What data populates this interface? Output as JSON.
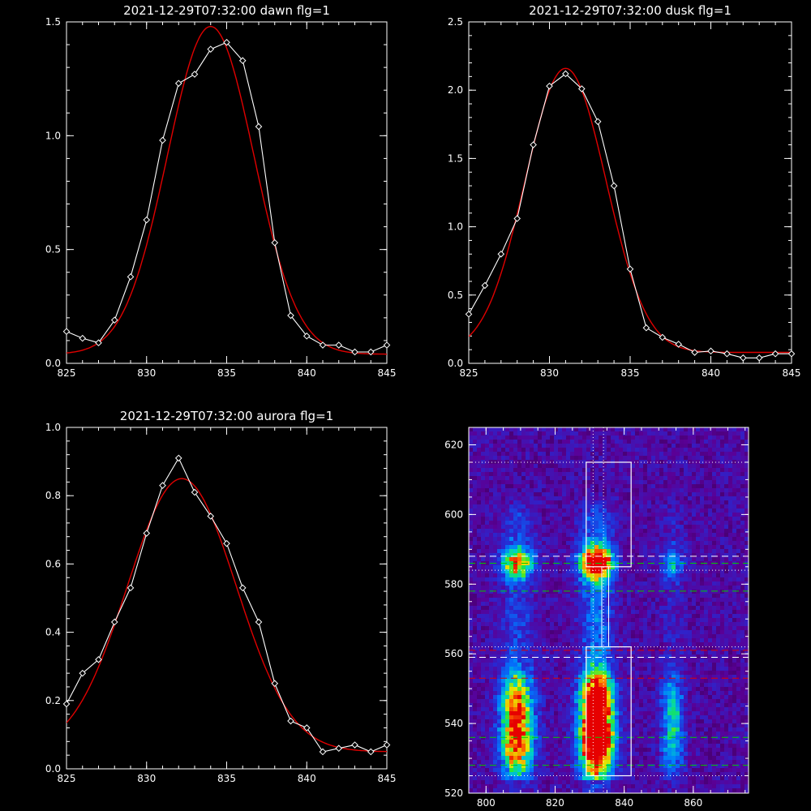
{
  "chart_data": [
    {
      "type": "line",
      "title": "2021-12-29T07:32:00 dawn flg=1",
      "xlim": [
        825,
        845
      ],
      "ylim": [
        0.0,
        1.5
      ],
      "xticks": [
        "825",
        "830",
        "835",
        "840",
        "845"
      ],
      "yticks": [
        "0.0",
        "0.5",
        "1.0",
        "1.5"
      ],
      "grid": false,
      "series": [
        {
          "color": "#ffffff",
          "marker": "diamond",
          "x": [
            825,
            826,
            827,
            828,
            829,
            830,
            831,
            832,
            833,
            834,
            835,
            836,
            837,
            838,
            839,
            840,
            841,
            842,
            843,
            844,
            845
          ],
          "y": [
            0.14,
            0.11,
            0.09,
            0.19,
            0.38,
            0.63,
            0.98,
            1.23,
            1.27,
            1.38,
            1.41,
            1.33,
            1.04,
            0.53,
            0.21,
            0.12,
            0.08,
            0.08,
            0.05,
            0.05,
            0.08
          ]
        },
        {
          "color": "#e00000",
          "fit": "gaussian",
          "amplitude": 1.44,
          "center": 834.0,
          "sigma": 2.7,
          "baseline": 0.04
        }
      ]
    },
    {
      "type": "line",
      "title": "2021-12-29T07:32:00 dusk flg=1",
      "xlim": [
        825,
        845
      ],
      "ylim": [
        0.0,
        2.5
      ],
      "xticks": [
        "825",
        "830",
        "835",
        "840",
        "845"
      ],
      "yticks": [
        "0.0",
        "0.5",
        "1.0",
        "1.5",
        "2.0",
        "2.5"
      ],
      "grid": false,
      "series": [
        {
          "color": "#ffffff",
          "marker": "diamond",
          "x": [
            825,
            826,
            827,
            828,
            829,
            830,
            831,
            832,
            833,
            834,
            835,
            836,
            837,
            838,
            839,
            840,
            841,
            842,
            843,
            844,
            845
          ],
          "y": [
            0.36,
            0.57,
            0.8,
            1.06,
            1.6,
            2.03,
            2.12,
            2.01,
            1.77,
            1.3,
            0.69,
            0.26,
            0.19,
            0.14,
            0.08,
            0.09,
            0.07,
            0.04,
            0.04,
            0.07,
            0.07
          ]
        },
        {
          "color": "#e00000",
          "fit": "gaussian",
          "amplitude": 2.08,
          "center": 831.0,
          "sigma": 2.5,
          "baseline": 0.08
        }
      ]
    },
    {
      "type": "line",
      "title": "2021-12-29T07:32:00 aurora flg=1",
      "xlim": [
        825,
        845
      ],
      "ylim": [
        0.0,
        1.0
      ],
      "xticks": [
        "825",
        "830",
        "835",
        "840",
        "845"
      ],
      "yticks": [
        "0.0",
        "0.2",
        "0.4",
        "0.6",
        "0.8",
        "1.0"
      ],
      "grid": false,
      "series": [
        {
          "color": "#ffffff",
          "marker": "diamond",
          "x": [
            825,
            826,
            827,
            828,
            829,
            830,
            831,
            832,
            833,
            834,
            835,
            836,
            837,
            838,
            839,
            840,
            841,
            842,
            843,
            844,
            845
          ],
          "y": [
            0.19,
            0.28,
            0.32,
            0.43,
            0.53,
            0.69,
            0.83,
            0.91,
            0.81,
            0.74,
            0.66,
            0.53,
            0.43,
            0.25,
            0.14,
            0.12,
            0.05,
            0.06,
            0.07,
            0.05,
            0.07
          ]
        },
        {
          "color": "#e00000",
          "fit": "gaussian",
          "amplitude": 0.8,
          "center": 832.2,
          "sigma": 3.4,
          "baseline": 0.05
        }
      ]
    },
    {
      "type": "heatmap",
      "title": "",
      "xlim": [
        795,
        876
      ],
      "ylim": [
        520,
        625
      ],
      "xticks": [
        "800",
        "820",
        "840",
        "860"
      ],
      "yticks": [
        "520",
        "540",
        "560",
        "580",
        "600",
        "620"
      ],
      "colormap": "rainbow",
      "emission_columns": [
        {
          "x": 809,
          "width": 3.2,
          "strength": 1.0
        },
        {
          "x": 832,
          "width": 3.2,
          "strength": 1.6
        },
        {
          "x": 854,
          "width": 2.2,
          "strength": 0.45
        }
      ],
      "emission_rows": [
        {
          "y": 536,
          "width": 7,
          "strength": 1.2
        },
        {
          "y": 548,
          "width": 5,
          "strength": 0.7
        },
        {
          "y": 586,
          "width": 3,
          "strength": 1.0
        }
      ],
      "boxes": [
        {
          "x": [
            829,
            842
          ],
          "y": [
            585,
            615
          ]
        },
        {
          "x": [
            829,
            842
          ],
          "y": [
            525,
            562
          ]
        }
      ],
      "vertical_dotted": [
        831,
        834
      ],
      "vertical_solid": [
        833.5,
        835.5
      ],
      "horizontal_lines": [
        {
          "y": 615,
          "color": "#ffffff",
          "style": "dotted"
        },
        {
          "y": 588,
          "color": "#ffffff",
          "style": "dashed"
        },
        {
          "y": 586,
          "color": "#00cc00",
          "style": "dashed"
        },
        {
          "y": 584,
          "color": "#ffffff",
          "style": "dotted"
        },
        {
          "y": 578,
          "color": "#00cc00",
          "style": "dashed"
        },
        {
          "y": 562,
          "color": "#ffffff",
          "style": "dotted"
        },
        {
          "y": 561,
          "color": "#e00000",
          "style": "dashed"
        },
        {
          "y": 559,
          "color": "#ffffff",
          "style": "dashed"
        },
        {
          "y": 553,
          "color": "#e00000",
          "style": "dashed"
        },
        {
          "y": 536,
          "color": "#00cc00",
          "style": "dashed"
        },
        {
          "y": 528,
          "color": "#00cc00",
          "style": "dashed"
        },
        {
          "y": 525,
          "color": "#ffffff",
          "style": "dotted"
        }
      ]
    }
  ]
}
